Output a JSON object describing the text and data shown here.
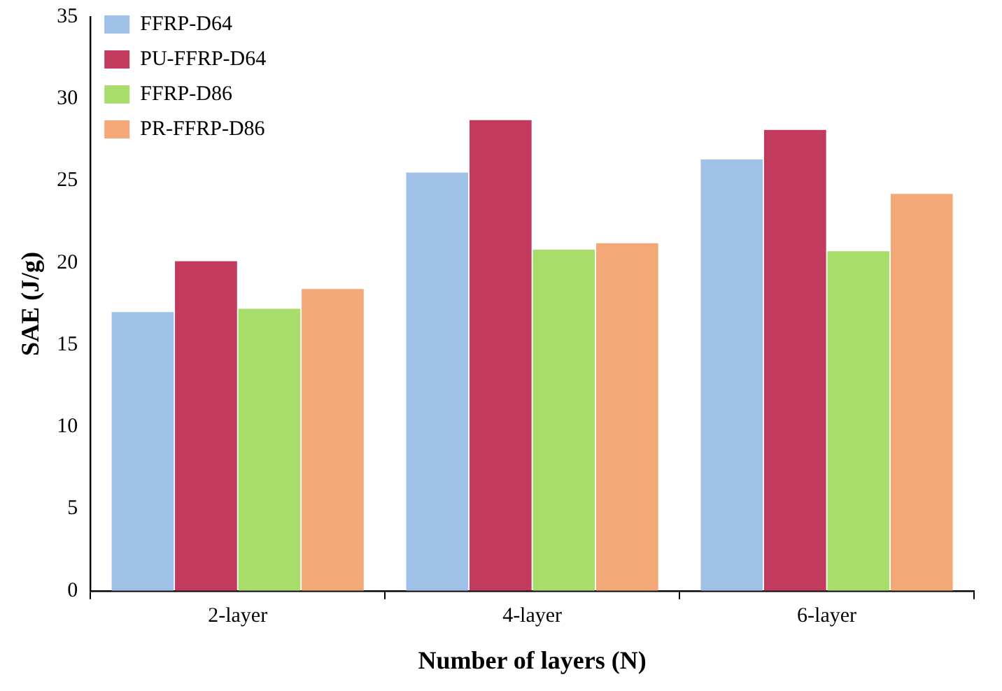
{
  "chart_data": {
    "type": "bar",
    "xlabel": "Number of layers (N)",
    "ylabel": "SAE (J/g)",
    "categories": [
      "2-layer",
      "4-layer",
      "6-layer"
    ],
    "series": [
      {
        "name": "FFRP-D64",
        "color": "#9fc1e8",
        "values": [
          17.0,
          25.5,
          26.3
        ]
      },
      {
        "name": "PU-FFRP-D64",
        "color": "#c23a5e",
        "values": [
          20.1,
          28.7,
          28.1
        ]
      },
      {
        "name": "FFRP-D86",
        "color": "#a8dd6c",
        "values": [
          17.2,
          20.8,
          20.7
        ]
      },
      {
        "name": "PR-FFRP-D86",
        "color": "#f3a878",
        "values": [
          18.4,
          21.2,
          24.2
        ]
      }
    ],
    "ylim": [
      0,
      35
    ],
    "yticks": [
      0,
      5,
      10,
      15,
      20,
      25,
      30,
      35
    ],
    "grid": false,
    "legend": "top left"
  }
}
